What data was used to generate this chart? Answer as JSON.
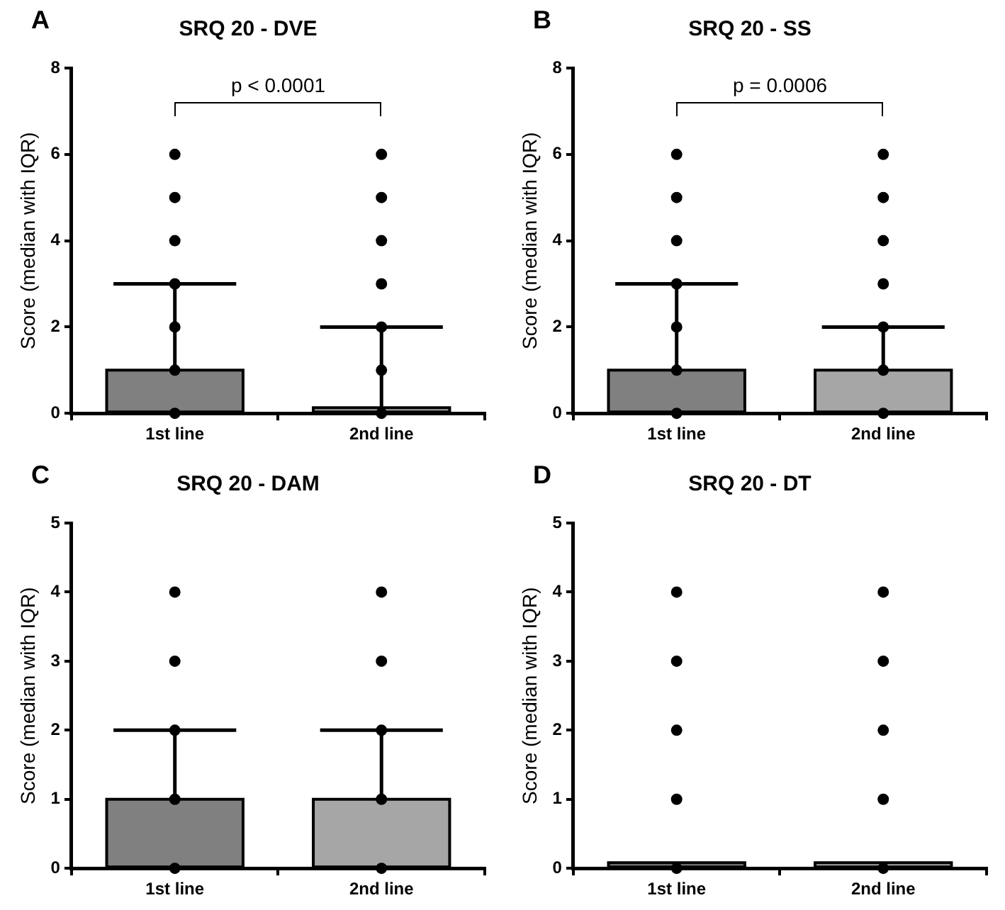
{
  "chart_data": [
    {
      "type": "box",
      "title": "SRQ 20 - DVE",
      "ylabel": "Score (median with IQR)",
      "categories": [
        "1st line",
        "2nd line"
      ],
      "ylim": [
        0,
        8
      ],
      "yticks": [
        0,
        2,
        4,
        6,
        8
      ],
      "colors": [
        "#808080",
        "#a6a6a6"
      ],
      "boxes": [
        {
          "low": 0,
          "q1": 0,
          "median": 0,
          "q3": 1,
          "high": 3
        },
        {
          "low": 0,
          "q1": 0,
          "median": 0,
          "q3": 0,
          "high": 2
        }
      ],
      "series": [
        {
          "type": "scatter",
          "color": "#000000",
          "x": [
            "1st line",
            "1st line",
            "1st line",
            "1st line",
            "1st line",
            "1st line",
            "1st line",
            "2nd line",
            "2nd line",
            "2nd line",
            "2nd line",
            "2nd line",
            "2nd line",
            "2nd line"
          ],
          "values": [
            0,
            1,
            2,
            3,
            4,
            5,
            6,
            0,
            1,
            2,
            3,
            4,
            5,
            6
          ]
        }
      ],
      "annotations": [
        "A",
        "p < 0.0001"
      ],
      "grid": false,
      "legend": false
    },
    {
      "type": "box",
      "title": "SRQ 20 - SS",
      "ylabel": "Score (median with IQR)",
      "categories": [
        "1st line",
        "2nd line"
      ],
      "ylim": [
        0,
        8
      ],
      "yticks": [
        0,
        2,
        4,
        6,
        8
      ],
      "colors": [
        "#808080",
        "#a6a6a6"
      ],
      "boxes": [
        {
          "low": 0,
          "q1": 0,
          "median": 0,
          "q3": 1,
          "high": 3
        },
        {
          "low": 0,
          "q1": 0,
          "median": 0,
          "q3": 1,
          "high": 2
        }
      ],
      "series": [
        {
          "type": "scatter",
          "color": "#000000",
          "x": [
            "1st line",
            "1st line",
            "1st line",
            "1st line",
            "1st line",
            "1st line",
            "1st line",
            "2nd line",
            "2nd line",
            "2nd line",
            "2nd line",
            "2nd line",
            "2nd line",
            "2nd line"
          ],
          "values": [
            0,
            1,
            2,
            3,
            4,
            5,
            6,
            0,
            1,
            2,
            3,
            4,
            5,
            6
          ]
        }
      ],
      "annotations": [
        "B",
        "p = 0.0006"
      ],
      "grid": false,
      "legend": false
    },
    {
      "type": "box",
      "title": "SRQ 20 - DAM",
      "ylabel": "Score (median with IQR)",
      "categories": [
        "1st line",
        "2nd line"
      ],
      "ylim": [
        0,
        5
      ],
      "yticks": [
        0,
        1,
        2,
        3,
        4,
        5
      ],
      "colors": [
        "#808080",
        "#a6a6a6"
      ],
      "boxes": [
        {
          "low": 0,
          "q1": 0,
          "median": 0,
          "q3": 1,
          "high": 2
        },
        {
          "low": 0,
          "q1": 0,
          "median": 0,
          "q3": 1,
          "high": 2
        }
      ],
      "series": [
        {
          "type": "scatter",
          "color": "#000000",
          "x": [
            "1st line",
            "1st line",
            "1st line",
            "1st line",
            "1st line",
            "2nd line",
            "2nd line",
            "2nd line",
            "2nd line",
            "2nd line"
          ],
          "values": [
            0,
            1,
            2,
            3,
            4,
            0,
            1,
            2,
            3,
            4
          ]
        }
      ],
      "annotations": [
        "C"
      ],
      "grid": false,
      "legend": false
    },
    {
      "type": "box",
      "title": "SRQ 20 - DT",
      "ylabel": "Score (median with IQR)",
      "categories": [
        "1st line",
        "2nd line"
      ],
      "ylim": [
        0,
        5
      ],
      "yticks": [
        0,
        1,
        2,
        3,
        4,
        5
      ],
      "colors": [
        "#808080",
        "#a6a6a6"
      ],
      "boxes": [
        {
          "low": 0,
          "q1": 0,
          "median": 0,
          "q3": 0,
          "high": 0
        },
        {
          "low": 0,
          "q1": 0,
          "median": 0,
          "q3": 0,
          "high": 0
        }
      ],
      "series": [
        {
          "type": "scatter",
          "color": "#000000",
          "x": [
            "1st line",
            "1st line",
            "1st line",
            "1st line",
            "1st line",
            "2nd line",
            "2nd line",
            "2nd line",
            "2nd line",
            "2nd line"
          ],
          "values": [
            0,
            1,
            2,
            3,
            4,
            0,
            1,
            2,
            3,
            4
          ]
        }
      ],
      "annotations": [
        "D"
      ],
      "grid": false,
      "legend": false
    }
  ]
}
